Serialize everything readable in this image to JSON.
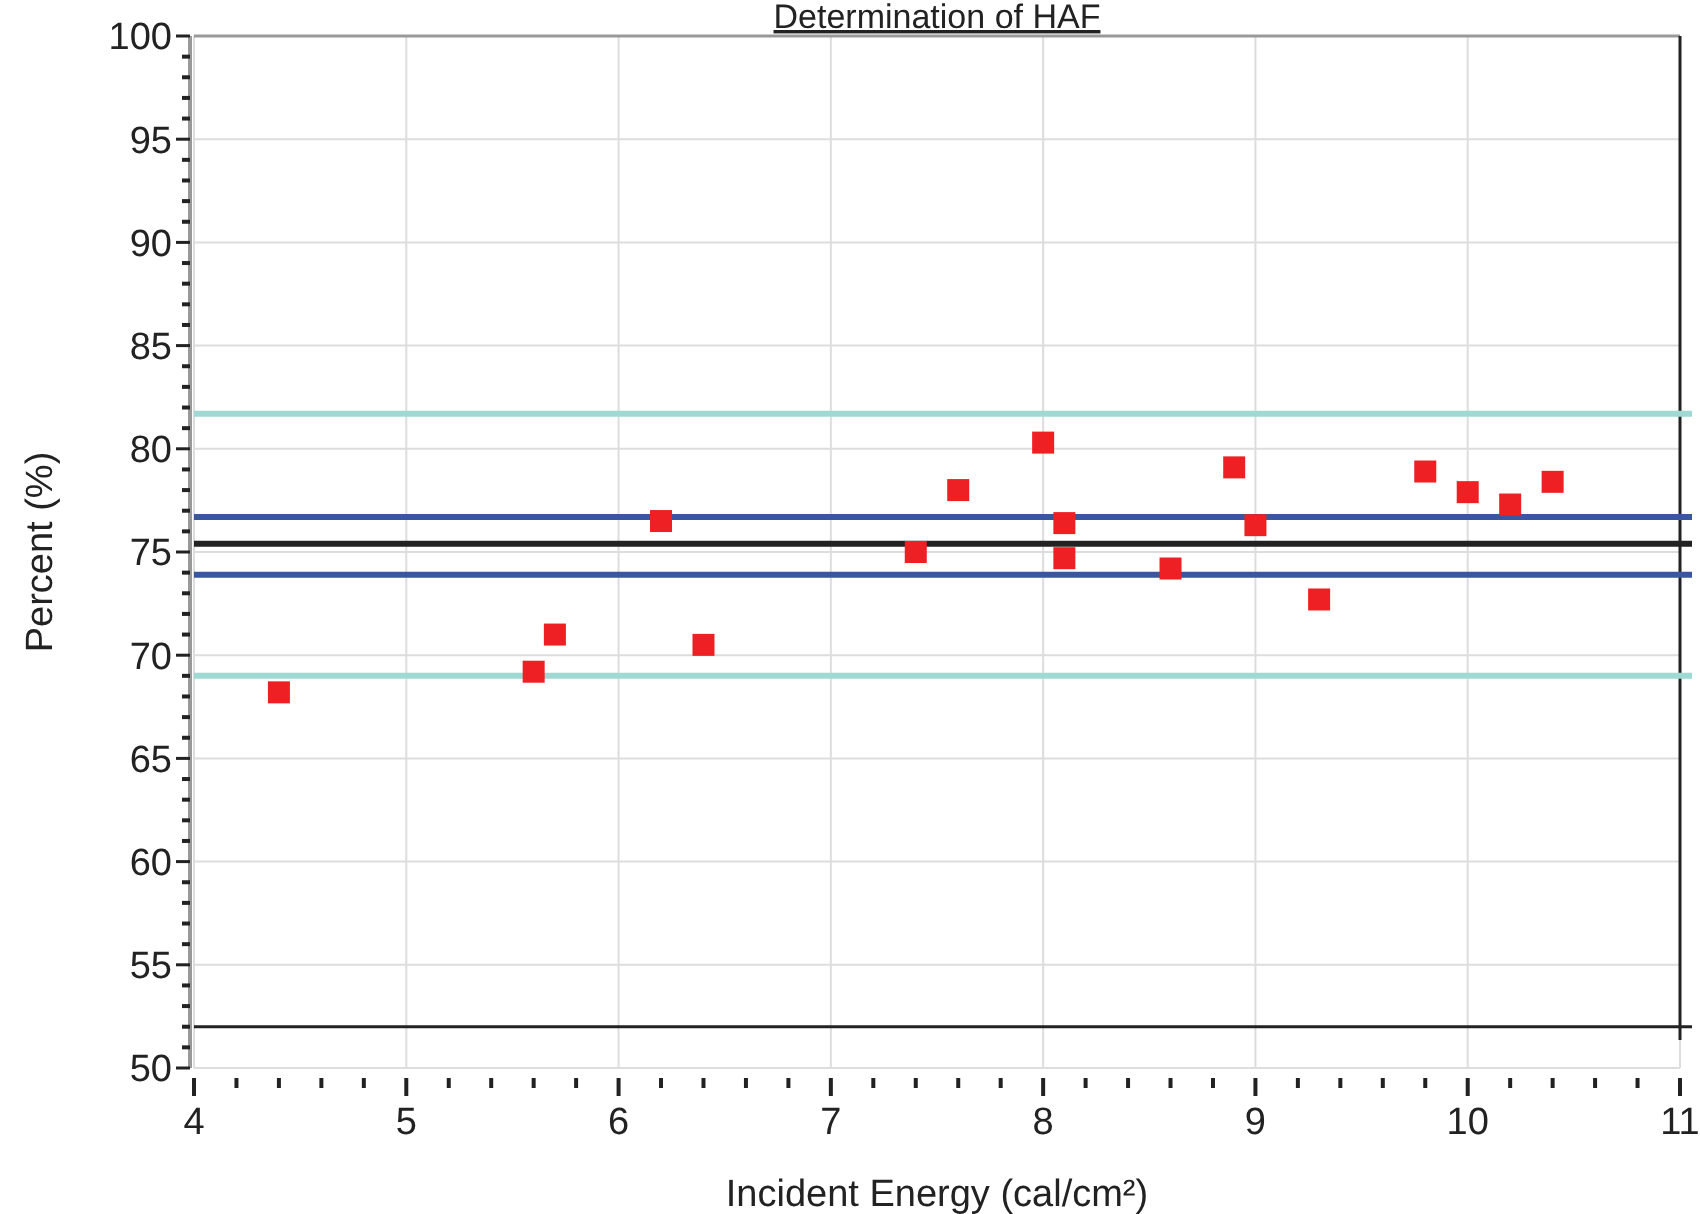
{
  "chart_data": {
    "type": "scatter",
    "title": "Determination of HAF",
    "xlabel": "Incident Energy (cal/cm²)",
    "ylabel": "Percent (%)",
    "xlim": [
      4,
      11
    ],
    "ylim": [
      50,
      100
    ],
    "xticks": [
      4,
      {
        "value": 4.2,
        "label": null
      },
      {
        "value": 4.4,
        "label": null
      },
      {
        "value": 4.6,
        "label": null
      },
      {
        "value": 4.8,
        "label": null
      },
      5,
      {
        "value": 5.2,
        "label": null
      },
      {
        "value": 5.4,
        "label": null
      },
      {
        "value": 5.6,
        "label": null
      },
      {
        "value": 5.8,
        "label": null
      },
      6,
      {
        "value": 6.2,
        "label": null
      },
      {
        "value": 6.4,
        "label": null
      },
      {
        "value": 6.6,
        "label": null
      },
      {
        "value": 6.8,
        "label": null
      },
      7,
      {
        "value": 7.2,
        "label": null
      },
      {
        "value": 7.4,
        "label": null
      },
      {
        "value": 7.6,
        "label": null
      },
      {
        "value": 7.8,
        "label": null
      },
      8,
      {
        "value": 8.2,
        "label": null
      },
      {
        "value": 8.4,
        "label": null
      },
      {
        "value": 8.6,
        "label": null
      },
      {
        "value": 8.8,
        "label": null
      },
      9,
      {
        "value": 9.2,
        "label": null
      },
      {
        "value": 9.4,
        "label": null
      },
      {
        "value": 9.6,
        "label": null
      },
      {
        "value": 9.8,
        "label": null
      },
      10,
      {
        "value": 10.2,
        "label": null
      },
      {
        "value": 10.4,
        "label": null
      },
      {
        "value": 10.6,
        "label": null
      },
      {
        "value": 10.8,
        "label": null
      },
      11
    ],
    "yticks": [
      50,
      {
        "value": 51,
        "label": null
      },
      {
        "value": 52,
        "label": null
      },
      {
        "value": 53,
        "label": null
      },
      {
        "value": 54,
        "label": null
      },
      55,
      {
        "value": 56,
        "label": null
      },
      {
        "value": 57,
        "label": null
      },
      {
        "value": 58,
        "label": null
      },
      {
        "value": 59,
        "label": null
      },
      60,
      {
        "value": 61,
        "label": null
      },
      {
        "value": 62,
        "label": null
      },
      {
        "value": 63,
        "label": null
      },
      {
        "value": 64,
        "label": null
      },
      65,
      {
        "value": 66,
        "label": null
      },
      {
        "value": 67,
        "label": null
      },
      {
        "value": 68,
        "label": null
      },
      {
        "value": 69,
        "label": null
      },
      70,
      {
        "value": 71,
        "label": null
      },
      {
        "value": 72,
        "label": null
      },
      {
        "value": 73,
        "label": null
      },
      {
        "value": 74,
        "label": null
      },
      75,
      {
        "value": 76,
        "label": null
      },
      {
        "value": 77,
        "label": null
      },
      {
        "value": 78,
        "label": null
      },
      {
        "value": 79,
        "label": null
      },
      80,
      {
        "value": 81,
        "label": null
      },
      {
        "value": 82,
        "label": null
      },
      {
        "value": 83,
        "label": null
      },
      {
        "value": 84,
        "label": null
      },
      85,
      {
        "value": 86,
        "label": null
      },
      {
        "value": 87,
        "label": null
      },
      {
        "value": 88,
        "label": null
      },
      {
        "value": 89,
        "label": null
      },
      90,
      {
        "value": 91,
        "label": null
      },
      {
        "value": 92,
        "label": null
      },
      {
        "value": 93,
        "label": null
      },
      {
        "value": 94,
        "label": null
      },
      95,
      {
        "value": 96,
        "label": null
      },
      {
        "value": 97,
        "label": null
      },
      {
        "value": 98,
        "label": null
      },
      {
        "value": 99,
        "label": null
      },
      100
    ],
    "grid": true,
    "marker": "square",
    "x": [
      4.4,
      5.6,
      5.7,
      6.2,
      6.4,
      7.4,
      7.6,
      8.0,
      8.1,
      8.1,
      8.6,
      8.9,
      9.0,
      9.3,
      9.8,
      10.0,
      10.2,
      10.4
    ],
    "series": [
      {
        "color": "#ee2024",
        "values": [
          68.2,
          69.2,
          71.0,
          76.5,
          70.5,
          75.0,
          78.0,
          80.3,
          76.4,
          74.7,
          74.2,
          79.1,
          76.3,
          72.7,
          78.9,
          77.9,
          77.3,
          78.4
        ]
      }
    ],
    "ref_lines": [
      {
        "axis": "y",
        "value": 81.7,
        "color": "#9fd9d3"
      },
      {
        "axis": "y",
        "value": 76.7,
        "color": "#3a56a0"
      },
      {
        "axis": "y",
        "value": 75.4,
        "color": "#222222"
      },
      {
        "axis": "y",
        "value": 73.9,
        "color": "#3a56a0"
      },
      {
        "axis": "y",
        "value": 69.0,
        "color": "#9fd9d3"
      },
      {
        "axis": "y",
        "value": 52,
        "color": "#222222"
      }
    ]
  }
}
